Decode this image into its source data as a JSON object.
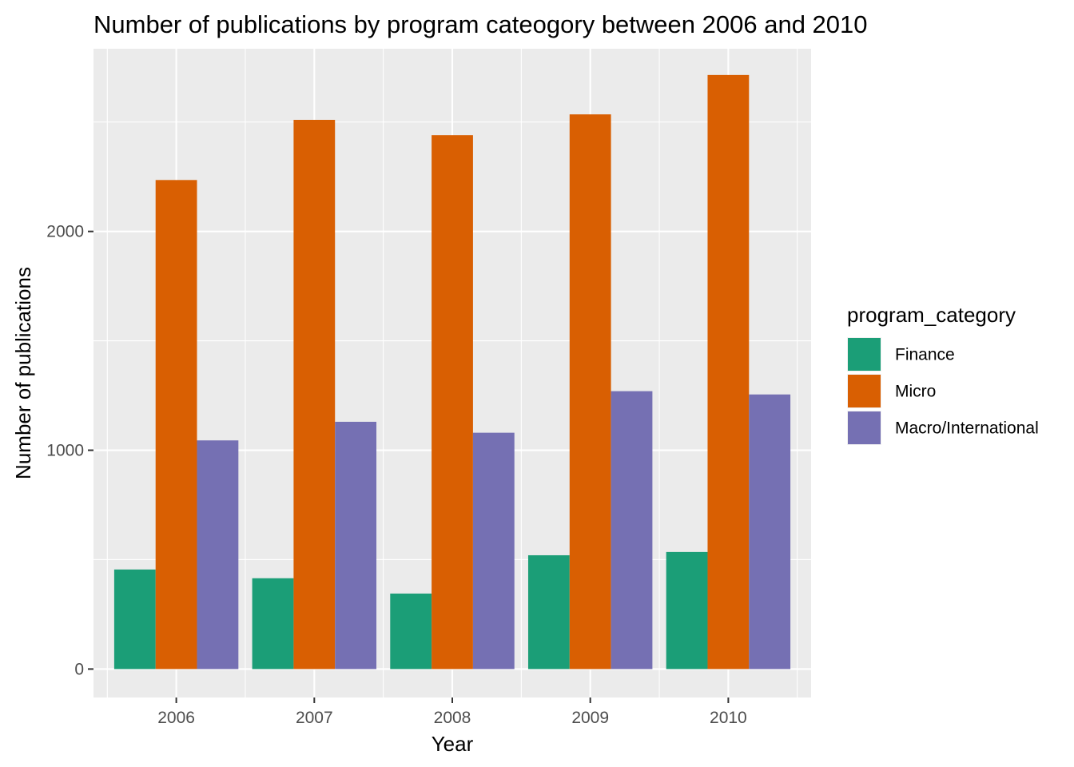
{
  "chart_data": {
    "type": "bar",
    "title": "Number of publications by program cateogory between 2006 and 2010",
    "xlabel": "Year",
    "ylabel": "Number of publications",
    "categories": [
      "2006",
      "2007",
      "2008",
      "2009",
      "2010"
    ],
    "series": [
      {
        "name": "Finance",
        "color": "#1b9e77",
        "values": [
          455,
          415,
          345,
          520,
          535
        ]
      },
      {
        "name": "Micro",
        "color": "#d95f02",
        "values": [
          2235,
          2510,
          2440,
          2535,
          2715
        ]
      },
      {
        "name": "Macro/International",
        "color": "#7570b3",
        "values": [
          1045,
          1130,
          1080,
          1270,
          1255
        ]
      }
    ],
    "ylim": [
      -130,
      2835
    ],
    "yticks": [
      0,
      1000,
      2000
    ],
    "ytick_labels": [
      "0",
      "1000",
      "2000"
    ],
    "grid": true,
    "panel_background": "#ebebeb",
    "grid_color": "#ffffff",
    "legend": {
      "title": "program_category",
      "position": "right"
    }
  }
}
